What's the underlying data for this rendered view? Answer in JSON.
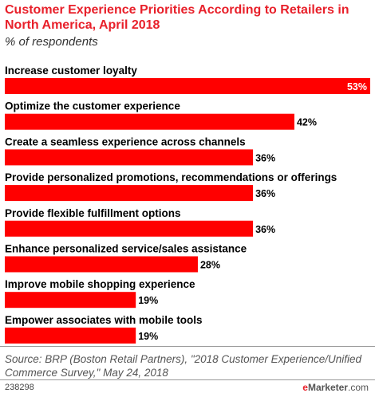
{
  "chart_data": {
    "type": "bar",
    "orientation": "horizontal",
    "title": "Customer Experience Priorities According to Retailers in North America, April 2018",
    "subtitle": "% of respondents",
    "categories": [
      "Increase customer loyalty",
      "Optimize the customer experience",
      "Create a seamless experience across channels",
      "Provide personalized promotions, recommendations or offerings",
      "Provide flexible fulfillment options",
      "Enhance personalized service/sales assistance",
      "Improve mobile shopping experience",
      "Empower associates with mobile tools"
    ],
    "values": [
      53,
      42,
      36,
      36,
      36,
      28,
      19,
      19
    ],
    "value_labels": [
      "53%",
      "42%",
      "36%",
      "36%",
      "36%",
      "28%",
      "19%",
      "19%"
    ],
    "xlim": [
      0,
      53
    ],
    "bar_color": "#ff0000",
    "grid": false,
    "legend": "none"
  },
  "footer": {
    "source": "Source: BRP (Boston Retail Partners), \"2018 Customer Experience/Unified Commerce Survey,\" May 24, 2018",
    "chart_id": "238298",
    "brand_e": "e",
    "brand_rest": "Marketer",
    "brand_domain": ".com"
  },
  "colors": {
    "accent": "#e8202a",
    "bar": "#ff0000",
    "value_inside": "#ffffff",
    "value_outside": "#000000"
  }
}
